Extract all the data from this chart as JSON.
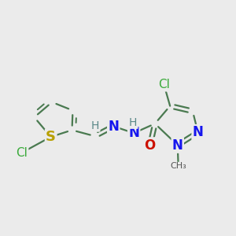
{
  "bg_color": "#ebebeb",
  "bond_color_ring": "#4a7a50",
  "bond_color_dark": "#3a6a40",
  "bond_width": 1.6,
  "dbo": 0.055,
  "figsize": [
    3.0,
    3.0
  ],
  "dpi": 100,
  "xlim": [
    0.3,
    6.5
  ],
  "ylim": [
    0.8,
    4.0
  ],
  "colors": {
    "S": "#b8a000",
    "Cl": "#3aaa3a",
    "N": "#1515ee",
    "O": "#cc1100",
    "H": "#5a8888",
    "C": "#3a6a40",
    "Me": "#555555"
  }
}
